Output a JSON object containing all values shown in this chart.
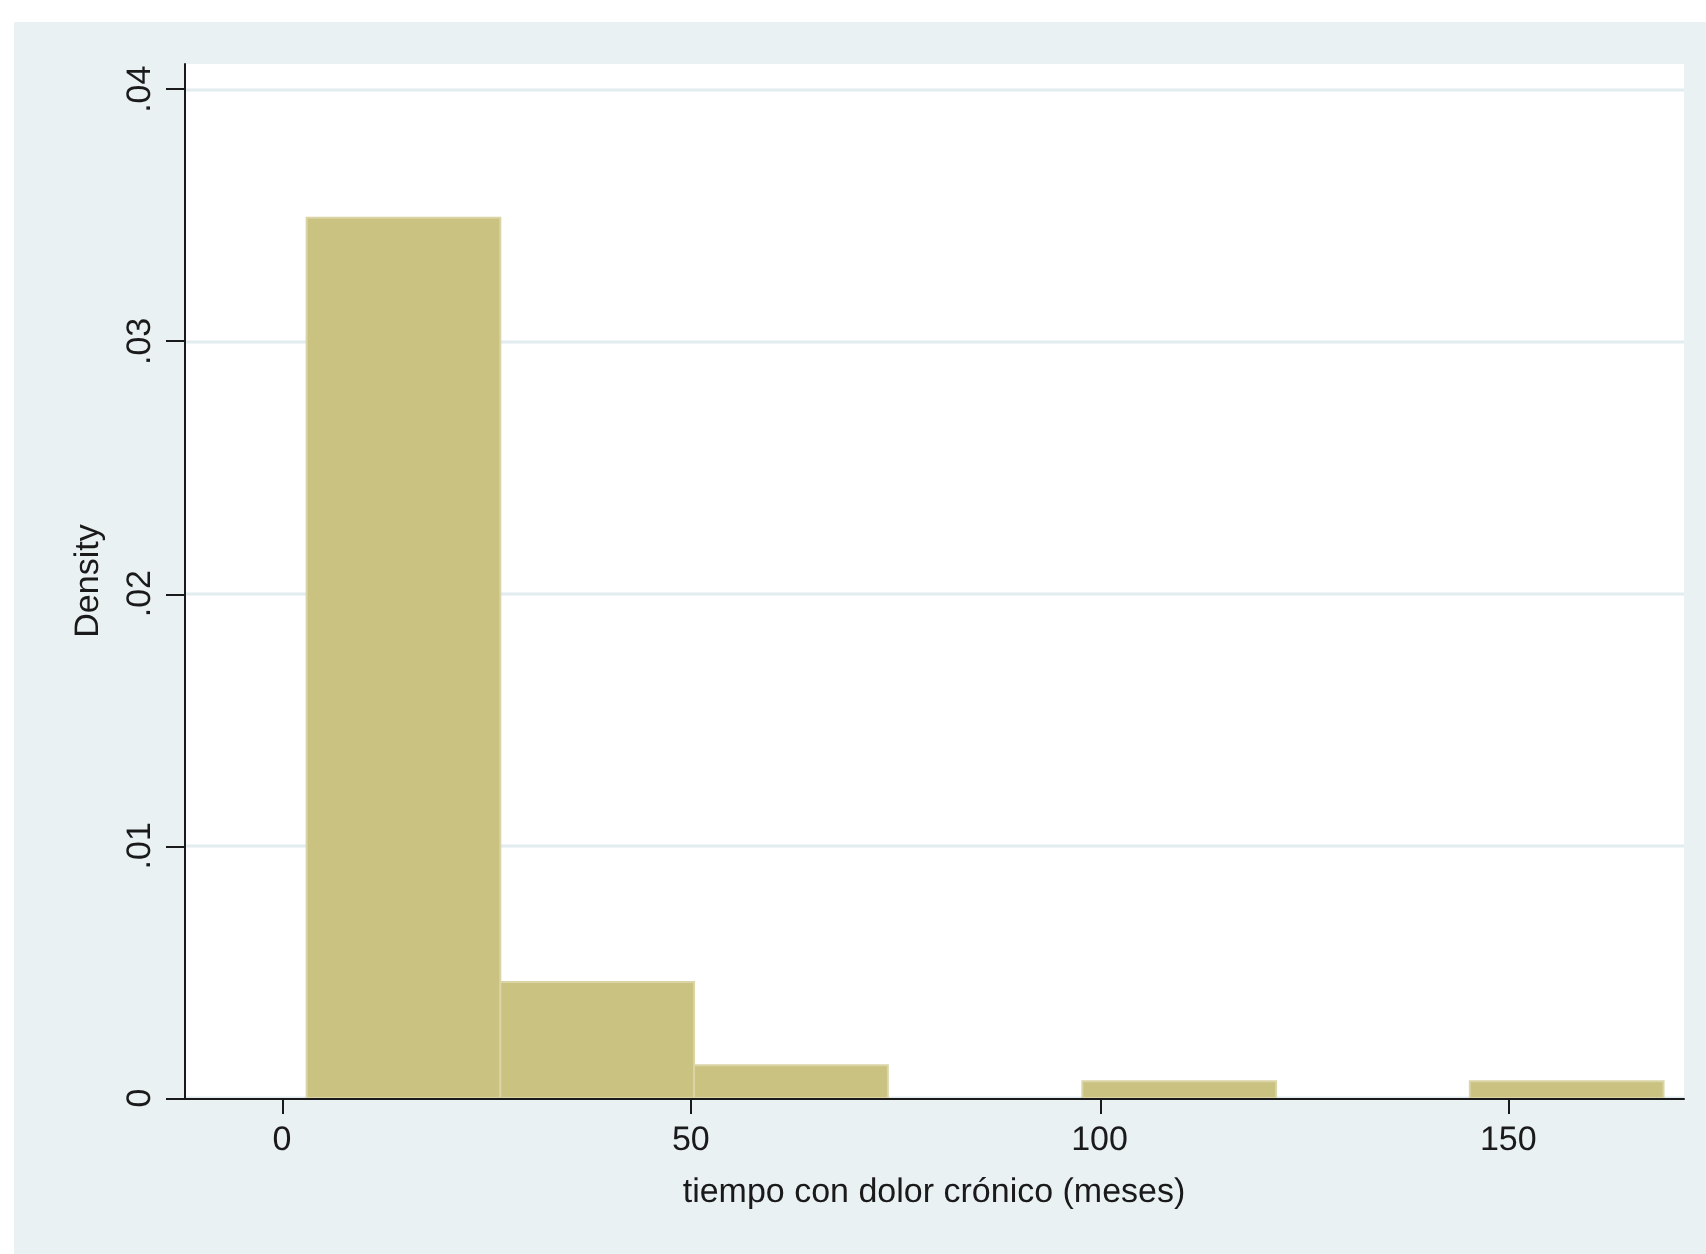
{
  "chart_data": {
    "type": "histogram",
    "xlabel": "tiempo con dolor crónico (meses)",
    "ylabel": "Density",
    "bins": [
      3,
      26.7,
      50.4,
      74.1,
      97.9,
      121.6,
      145.3,
      169
    ],
    "values": [
      0.0349,
      0.0046,
      0.0013,
      0,
      0.00066,
      0,
      0.00066
    ],
    "color": "#cac280",
    "xlim": [
      -12,
      171.5
    ],
    "ylim": [
      0,
      0.041
    ],
    "xticks": [
      0,
      50,
      100,
      150
    ],
    "yticks": [
      0,
      {
        "value": 0.01,
        "label": ".01"
      },
      {
        "value": 0.02,
        "label": ".02"
      },
      {
        "value": 0.03,
        "label": ".03"
      },
      {
        "value": 0.04,
        "label": ".04"
      }
    ],
    "grid": "y"
  }
}
